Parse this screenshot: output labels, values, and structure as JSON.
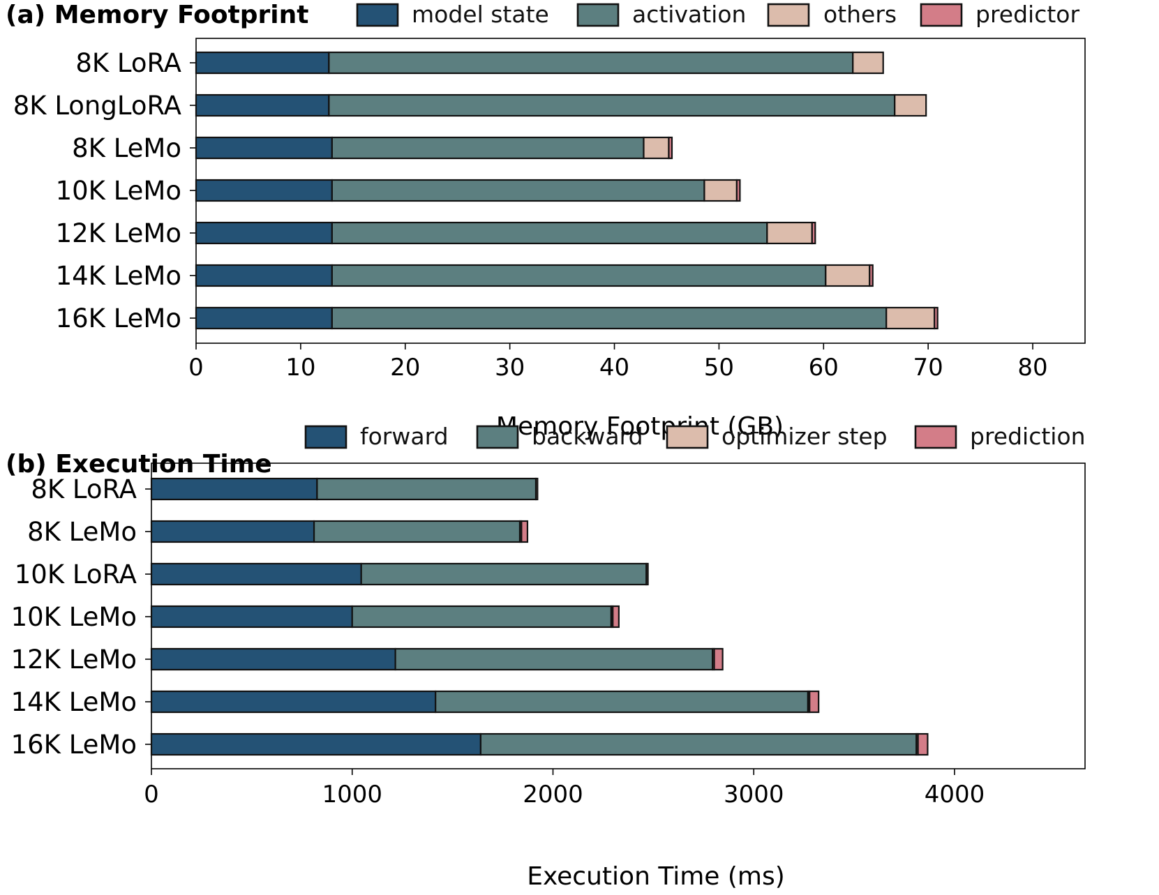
{
  "colors": {
    "dark_blue": "#245275",
    "teal": "#5c7f80",
    "peach": "#dcbcac",
    "pink": "#d37d88",
    "edge": "#111111"
  },
  "chart_data": [
    {
      "type": "bar",
      "orientation": "horizontal",
      "stacked": true,
      "title": "(a) Memory Footprint",
      "xlabel": "Memory Footprint (GB)",
      "ylabel": "",
      "xlim": [
        0,
        85
      ],
      "xticks": [
        0,
        10,
        20,
        30,
        40,
        50,
        60,
        70,
        80
      ],
      "legend_position": "top",
      "categories": [
        "8K LoRA",
        "8K LongLoRA",
        "8K LeMo",
        "10K LeMo",
        "12K LeMo",
        "14K LeMo",
        "16K LeMo"
      ],
      "series": [
        {
          "name": "model state",
          "color": "#245275",
          "values": [
            12.7,
            12.7,
            13.0,
            13.0,
            13.0,
            13.0,
            13.0
          ]
        },
        {
          "name": "activation",
          "color": "#5c7f80",
          "values": [
            50.1,
            54.1,
            29.8,
            35.6,
            41.6,
            47.2,
            53.0
          ]
        },
        {
          "name": "others",
          "color": "#dcbcac",
          "values": [
            2.9,
            3.0,
            2.4,
            3.1,
            4.3,
            4.2,
            4.6
          ]
        },
        {
          "name": "predictor",
          "color": "#d37d88",
          "values": [
            0.0,
            0.0,
            0.3,
            0.3,
            0.3,
            0.3,
            0.3
          ]
        }
      ]
    },
    {
      "type": "bar",
      "orientation": "horizontal",
      "stacked": true,
      "title": "(b) Execution Time",
      "xlabel": "Execution Time (ms)",
      "ylabel": "",
      "xlim": [
        0,
        4650
      ],
      "xticks": [
        0,
        1000,
        2000,
        3000,
        4000
      ],
      "legend_position": "top",
      "categories": [
        "8K LoRA",
        "8K LeMo",
        "10K LoRA",
        "10K LeMo",
        "12K LeMo",
        "14K LeMo",
        "16K LeMo"
      ],
      "series": [
        {
          "name": "forward",
          "color": "#245275",
          "values": [
            825,
            810,
            1045,
            1000,
            1215,
            1415,
            1640
          ]
        },
        {
          "name": "backward",
          "color": "#5c7f80",
          "values": [
            1090,
            1025,
            1420,
            1290,
            1580,
            1855,
            2170
          ]
        },
        {
          "name": "optimizer step",
          "color": "#dcbcac",
          "values": [
            8,
            8,
            8,
            8,
            8,
            8,
            8
          ]
        },
        {
          "name": "prediction",
          "color": "#d37d88",
          "values": [
            0,
            30,
            0,
            30,
            42,
            45,
            48
          ]
        }
      ]
    }
  ]
}
